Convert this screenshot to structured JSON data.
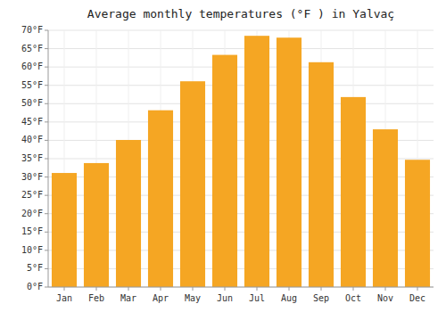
{
  "chart_data": {
    "type": "bar",
    "title": "Average monthly temperatures (°F ) in Yalvaç",
    "categories": [
      "Jan",
      "Feb",
      "Mar",
      "Apr",
      "May",
      "Jun",
      "Jul",
      "Aug",
      "Sep",
      "Oct",
      "Nov",
      "Dec"
    ],
    "values": [
      31.1,
      33.8,
      40.1,
      48.2,
      56.1,
      63.3,
      68.5,
      68.0,
      61.3,
      51.8,
      43.0,
      34.7
    ],
    "color": "#F5A623",
    "ylim": [
      0,
      70
    ],
    "yticks": [
      {
        "value": 0,
        "label": "0°F"
      },
      {
        "value": 5,
        "label": "5°F"
      },
      {
        "value": 10,
        "label": "10°F"
      },
      {
        "value": 15,
        "label": "15°F"
      },
      {
        "value": 20,
        "label": "20°F"
      },
      {
        "value": 25,
        "label": "25°F"
      },
      {
        "value": 30,
        "label": "30°F"
      },
      {
        "value": 35,
        "label": "35°F"
      },
      {
        "value": 40,
        "label": "40°F"
      },
      {
        "value": 45,
        "label": "45°F"
      },
      {
        "value": 50,
        "label": "50°F"
      },
      {
        "value": 55,
        "label": "55°F"
      },
      {
        "value": 60,
        "label": "60°F"
      },
      {
        "value": 65,
        "label": "65°F"
      },
      {
        "value": 70,
        "label": "70°F"
      }
    ],
    "grid": true
  }
}
